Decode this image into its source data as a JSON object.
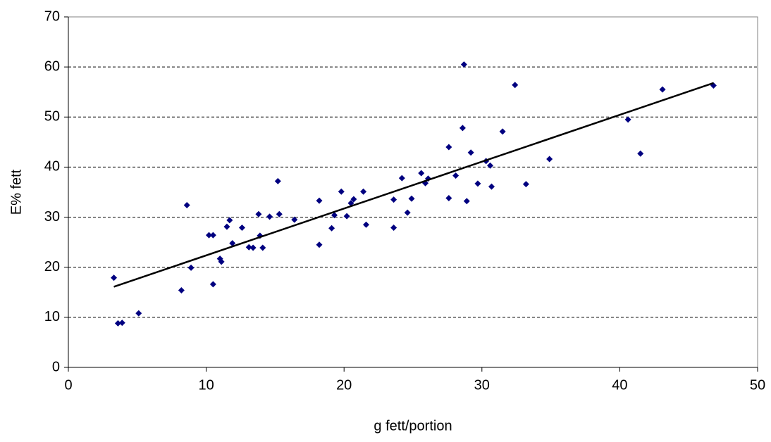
{
  "chart_data": {
    "type": "scatter",
    "x_label": "g fett/portion",
    "y_label": "E% fett",
    "xlim": [
      0,
      50
    ],
    "xticks": [
      0,
      10,
      20,
      30,
      40,
      50
    ],
    "ylim": [
      0,
      70
    ],
    "yticks": [
      0,
      10,
      20,
      30,
      40,
      50,
      60,
      70
    ],
    "grid": true,
    "color": "#000080",
    "x": [
      3.3,
      3.6,
      3.9,
      5.1,
      8.2,
      8.6,
      8.9,
      10.2,
      10.5,
      10.5,
      11.0,
      11.1,
      11.5,
      11.7,
      11.9,
      12.6,
      13.1,
      13.4,
      13.8,
      13.9,
      14.1,
      14.6,
      15.2,
      15.3,
      16.4,
      18.2,
      18.2,
      19.1,
      19.3,
      19.8,
      20.2,
      20.5,
      20.7,
      21.4,
      21.6,
      23.6,
      23.6,
      24.2,
      24.6,
      24.9,
      25.6,
      25.9,
      26.1,
      27.6,
      27.6,
      28.1,
      28.6,
      28.7,
      28.9,
      29.2,
      29.7,
      30.3,
      30.6,
      30.7,
      31.5,
      32.4,
      33.2,
      34.9,
      40.6,
      41.5,
      43.1,
      46.8
    ],
    "values": [
      17.9,
      8.8,
      8.9,
      10.8,
      15.4,
      32.4,
      19.9,
      26.4,
      26.4,
      16.6,
      21.7,
      21.1,
      28.1,
      29.4,
      24.8,
      27.9,
      24.0,
      23.9,
      30.6,
      26.3,
      23.9,
      30.1,
      37.2,
      30.6,
      29.5,
      33.3,
      24.5,
      27.8,
      30.4,
      35.1,
      30.2,
      32.8,
      33.6,
      35.1,
      28.5,
      33.5,
      27.9,
      37.8,
      30.9,
      33.7,
      38.8,
      36.8,
      37.7,
      44.0,
      33.8,
      38.3,
      47.8,
      60.5,
      33.2,
      42.9,
      36.7,
      41.2,
      40.3,
      36.1,
      47.1,
      56.4,
      36.6,
      41.6,
      49.5,
      42.7,
      55.5,
      56.3
    ],
    "trendline": {
      "color": "#000000",
      "x": [
        3.3,
        46.8
      ],
      "y": [
        16.1,
        56.8
      ]
    }
  }
}
